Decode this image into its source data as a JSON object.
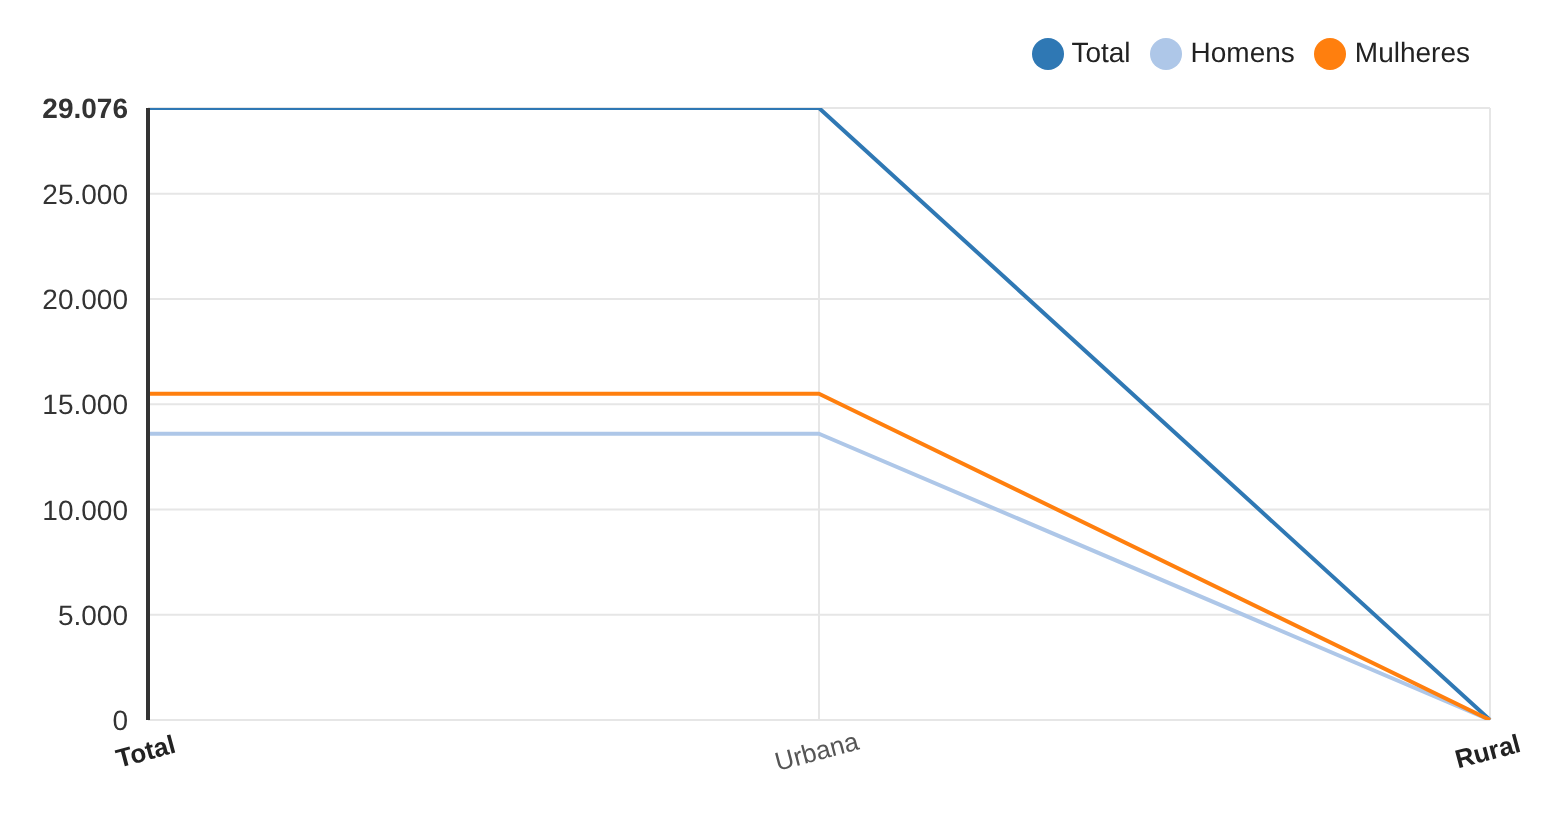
{
  "chart_data": {
    "type": "line",
    "categories": [
      "Total",
      "Urbana",
      "Rural"
    ],
    "series": [
      {
        "name": "Total",
        "color": "#2f78b4",
        "values": [
          29076,
          29076,
          0
        ]
      },
      {
        "name": "Homens",
        "color": "#aec7e8",
        "values": [
          13600,
          13600,
          0
        ]
      },
      {
        "name": "Mulheres",
        "color": "#ff7f0e",
        "values": [
          15500,
          15500,
          0
        ]
      }
    ],
    "ylim": [
      0,
      29076
    ],
    "yticks": [
      0,
      {
        "value": 5000,
        "label": "5.000"
      },
      {
        "value": 10000,
        "label": "10.000"
      },
      {
        "value": 15000,
        "label": "15.000"
      },
      {
        "value": 20000,
        "label": "20.000"
      },
      {
        "value": 25000,
        "label": "25.000"
      },
      {
        "value": 29076,
        "label": "29.076"
      }
    ],
    "grid": true,
    "legend": "top right",
    "marker": "none",
    "line_style": "solid"
  }
}
